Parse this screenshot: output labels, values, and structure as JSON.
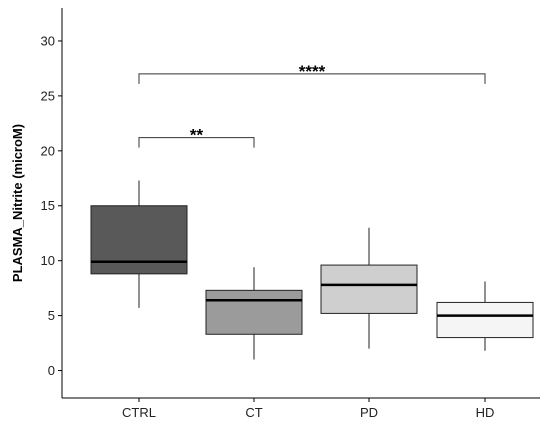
{
  "chart_data": {
    "type": "boxplot",
    "ylabel": "PLASMA_Nitrite (microM)",
    "ylim": [
      -2.5,
      33
    ],
    "yticks": [
      0,
      5,
      10,
      15,
      20,
      25,
      30
    ],
    "categories": [
      "CTRL",
      "CT",
      "PD",
      "HD"
    ],
    "boxes": [
      {
        "category": "CTRL",
        "whisker_low": 5.7,
        "q1": 8.8,
        "median": 9.9,
        "q3": 15.0,
        "whisker_high": 17.3,
        "fill": "#595959"
      },
      {
        "category": "CT",
        "whisker_low": 1.0,
        "q1": 3.3,
        "median": 6.4,
        "q3": 7.3,
        "whisker_high": 9.4,
        "fill": "#9b9b9b"
      },
      {
        "category": "PD",
        "whisker_low": 2.0,
        "q1": 5.2,
        "median": 7.8,
        "q3": 9.6,
        "whisker_high": 13.0,
        "fill": "#cfcfcf"
      },
      {
        "category": "HD",
        "whisker_low": 1.8,
        "q1": 3.0,
        "median": 5.0,
        "q3": 6.2,
        "whisker_high": 8.1,
        "fill": "#f5f5f5"
      }
    ],
    "significance": [
      {
        "from": "CTRL",
        "to": "CT",
        "y": 21.2,
        "label": "**"
      },
      {
        "from": "CTRL",
        "to": "HD",
        "y": 27.0,
        "label": "****"
      }
    ],
    "grid": false
  }
}
